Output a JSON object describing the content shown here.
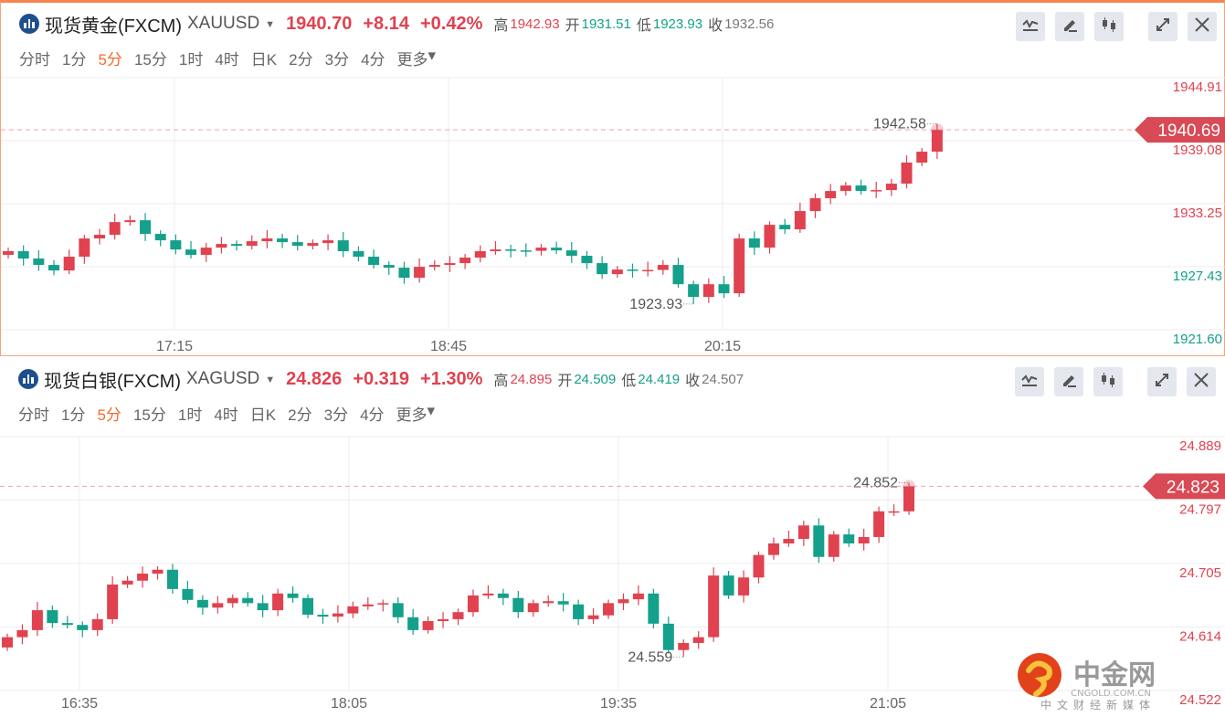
{
  "panels": [
    {
      "title": "现货黄金(FXCM)",
      "symbol": "XAUUSD",
      "price": "1940.70",
      "change": "+8.14",
      "pct": "+0.42%",
      "high_label": "高",
      "high": "1942.93",
      "open_label": "开",
      "open": "1931.51",
      "low_label": "低",
      "low": "1923.93",
      "close_label": "收",
      "close": "1932.56",
      "tabs": [
        "分时",
        "1分",
        "5分",
        "15分",
        "1时",
        "4时",
        "日K",
        "2分",
        "3分",
        "4分",
        "更多"
      ],
      "active_tab": "5分",
      "tools": [
        "indicator-icon",
        "draw-icon",
        "candle-type-icon",
        "expand-icon",
        "close-icon"
      ]
    },
    {
      "title": "现货白银(FXCM)",
      "symbol": "XAGUSD",
      "price": "24.826",
      "change": "+0.319",
      "pct": "+1.30%",
      "high_label": "高",
      "high": "24.895",
      "open_label": "开",
      "open": "24.509",
      "low_label": "低",
      "low": "24.419",
      "close_label": "收",
      "close": "24.507",
      "tabs": [
        "分时",
        "1分",
        "5分",
        "15分",
        "1时",
        "4时",
        "日K",
        "2分",
        "3分",
        "4分",
        "更多"
      ],
      "active_tab": "5分",
      "tools": [
        "indicator-icon",
        "draw-icon",
        "candle-type-icon",
        "expand-icon",
        "close-icon"
      ]
    }
  ],
  "chart_data": [
    {
      "type": "candlestick",
      "symbol": "XAUUSD",
      "interval": "5分",
      "prev_close": 1932.56,
      "y_ticks": [
        "1944.91",
        "1939.08",
        "1933.25",
        "1927.43",
        "1921.60"
      ],
      "ylim": [
        1921.6,
        1944.91
      ],
      "x_ticks": [
        "17:15",
        "18:45",
        "20:15"
      ],
      "current_price": "1940.69",
      "max_label": "1942.58",
      "min_label": "1923.93",
      "first_open": 1928.41,
      "closes": [
        1928.77,
        1928.05,
        1927.42,
        1926.88,
        1928.23,
        1930.02,
        1930.38,
        1931.63,
        1931.81,
        1930.47,
        1929.84,
        1928.94,
        1928.41,
        1929.12,
        1929.48,
        1929.3,
        1929.75,
        1930.02,
        1929.66,
        1929.3,
        1929.57,
        1929.84,
        1928.77,
        1928.23,
        1927.42,
        1927.15,
        1926.16,
        1927.24,
        1927.42,
        1927.6,
        1928.14,
        1928.77,
        1928.94,
        1928.85,
        1928.81,
        1929.12,
        1928.85,
        1928.32,
        1927.6,
        1926.52,
        1926.97,
        1926.88,
        1926.93,
        1927.42,
        1925.53,
        1924.28,
        1925.53,
        1924.64,
        1930.02,
        1929.12,
        1931.36,
        1930.92,
        1932.71,
        1933.97,
        1934.68,
        1935.22,
        1934.68,
        1934.77,
        1935.4,
        1937.47,
        1938.54,
        1940.69
      ]
    },
    {
      "type": "candlestick",
      "symbol": "XAGUSD",
      "interval": "5分",
      "prev_close": 24.507,
      "y_ticks": [
        "24.889",
        "24.797",
        "24.705",
        "24.614",
        "24.522"
      ],
      "ylim": [
        24.522,
        24.889
      ],
      "x_ticks": [
        "16:35",
        "18:05",
        "19:35",
        "21:05"
      ],
      "current_price": "24.823",
      "max_label": "24.852",
      "min_label": "24.559",
      "first_open": 24.572,
      "closes": [
        24.588,
        24.599,
        24.63,
        24.61,
        24.607,
        24.599,
        24.616,
        24.67,
        24.676,
        24.687,
        24.693,
        24.663,
        24.646,
        24.634,
        24.641,
        24.649,
        24.641,
        24.63,
        24.656,
        24.649,
        24.623,
        24.62,
        24.625,
        24.636,
        24.639,
        24.641,
        24.619,
        24.599,
        24.613,
        24.616,
        24.627,
        24.653,
        24.656,
        24.649,
        24.627,
        24.641,
        24.644,
        24.639,
        24.616,
        24.622,
        24.641,
        24.647,
        24.656,
        24.609,
        24.568,
        24.579,
        24.588,
        24.684,
        24.653,
        24.681,
        24.716,
        24.734,
        24.741,
        24.762,
        24.713,
        24.748,
        24.734,
        24.744,
        24.784,
        24.784,
        24.823
      ]
    }
  ],
  "watermark": {
    "brand": "中金网",
    "domain": "CNGOLD.COM.CN",
    "slogan": "中文财经新媒体"
  },
  "colors": {
    "up": "#e0424f",
    "down": "#14a08a",
    "active": "#f06a2f"
  }
}
